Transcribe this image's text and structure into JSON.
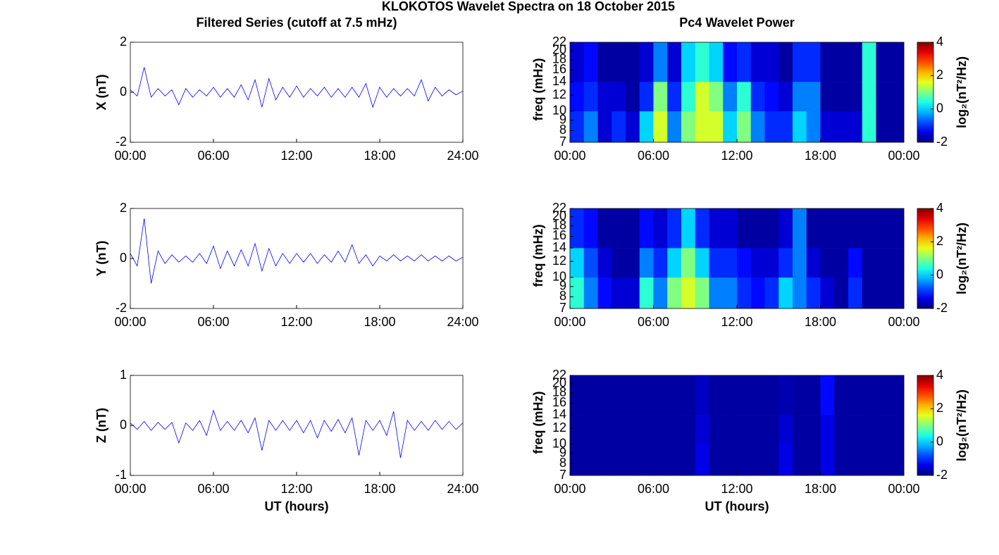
{
  "figure_title": "KLOKOTOS Wavelet Spectra on 18 October 2015",
  "chart_data": [
    {
      "type": "line",
      "title": "Filtered Series (cutoff at 7.5 mHz)",
      "ylabel": "X (nT)",
      "color": "#0000ff",
      "x": [
        0,
        0.5,
        1,
        1.5,
        2,
        2.5,
        3,
        3.5,
        4,
        4.5,
        5,
        5.5,
        6,
        6.5,
        7,
        7.5,
        8,
        8.5,
        9,
        9.5,
        10,
        10.5,
        11,
        11.5,
        12,
        12.5,
        13,
        13.5,
        14,
        14.5,
        15,
        15.5,
        16,
        16.5,
        17,
        17.5,
        18,
        18.5,
        19,
        19.5,
        20,
        20.5,
        21,
        21.5,
        22,
        22.5,
        23,
        23.5,
        24
      ],
      "values": [
        0.1,
        -0.15,
        1.0,
        -0.2,
        0.15,
        -0.15,
        0.1,
        -0.5,
        0.15,
        -0.2,
        0.1,
        -0.15,
        0.2,
        -0.2,
        0.15,
        -0.2,
        0.3,
        -0.3,
        0.5,
        -0.6,
        0.55,
        -0.3,
        0.2,
        -0.2,
        0.25,
        -0.2,
        0.15,
        -0.15,
        0.2,
        -0.2,
        0.15,
        -0.2,
        0.2,
        -0.2,
        0.35,
        -0.6,
        0.2,
        -0.2,
        0.15,
        -0.15,
        0.15,
        -0.15,
        0.5,
        -0.35,
        0.2,
        -0.15,
        0.1,
        -0.1,
        0.05
      ],
      "xlim": [
        0,
        24
      ],
      "xticks": [
        {
          "value": 0,
          "label": "00:00"
        },
        {
          "value": 6,
          "label": "06:00"
        },
        {
          "value": 12,
          "label": "12:00"
        },
        {
          "value": 18,
          "label": "18:00"
        },
        {
          "value": 24,
          "label": "24:00"
        }
      ],
      "ylim": [
        -2,
        2
      ],
      "yticks": [
        -2,
        0,
        2
      ]
    },
    {
      "type": "line",
      "ylabel": "Y (nT)",
      "color": "#0000ff",
      "x": [
        0,
        0.5,
        1,
        1.5,
        2,
        2.5,
        3,
        3.5,
        4,
        4.5,
        5,
        5.5,
        6,
        6.5,
        7,
        7.5,
        8,
        8.5,
        9,
        9.5,
        10,
        10.5,
        11,
        11.5,
        12,
        12.5,
        13,
        13.5,
        14,
        14.5,
        15,
        15.5,
        16,
        16.5,
        17,
        17.5,
        18,
        18.5,
        19,
        19.5,
        20,
        20.5,
        21,
        21.5,
        22,
        22.5,
        23,
        23.5,
        24
      ],
      "values": [
        0.2,
        -0.3,
        1.6,
        -1.0,
        0.3,
        -0.2,
        0.15,
        -0.15,
        0.1,
        -0.15,
        0.2,
        -0.2,
        0.5,
        -0.4,
        0.3,
        -0.3,
        0.35,
        -0.3,
        0.6,
        -0.5,
        0.4,
        -0.3,
        0.2,
        -0.2,
        0.2,
        -0.15,
        0.2,
        -0.2,
        0.15,
        -0.15,
        0.3,
        -0.15,
        0.55,
        -0.2,
        0.15,
        -0.3,
        0.1,
        -0.1,
        0.15,
        -0.1,
        0.1,
        -0.1,
        0.15,
        -0.1,
        0.1,
        -0.1,
        0.1,
        -0.1,
        0.05
      ],
      "xlim": [
        0,
        24
      ],
      "xticks": [
        {
          "value": 0,
          "label": "00:00"
        },
        {
          "value": 6,
          "label": "06:00"
        },
        {
          "value": 12,
          "label": "12:00"
        },
        {
          "value": 18,
          "label": "18:00"
        },
        {
          "value": 24,
          "label": "24:00"
        }
      ],
      "ylim": [
        -2,
        2
      ],
      "yticks": [
        -2,
        0,
        2
      ]
    },
    {
      "type": "line",
      "ylabel": "Z (nT)",
      "xlabel": "UT (hours)",
      "color": "#0000ff",
      "x": [
        0,
        0.5,
        1,
        1.5,
        2,
        2.5,
        3,
        3.5,
        4,
        4.5,
        5,
        5.5,
        6,
        6.5,
        7,
        7.5,
        8,
        8.5,
        9,
        9.5,
        10,
        10.5,
        11,
        11.5,
        12,
        12.5,
        13,
        13.5,
        14,
        14.5,
        15,
        15.5,
        16,
        16.5,
        17,
        17.5,
        18,
        18.5,
        19,
        19.5,
        20,
        20.5,
        21,
        21.5,
        22,
        22.5,
        23,
        23.5,
        24
      ],
      "values": [
        0.05,
        -0.08,
        0.08,
        -0.1,
        0.06,
        -0.08,
        0.06,
        -0.35,
        0.05,
        -0.1,
        0.1,
        -0.2,
        0.3,
        -0.1,
        0.08,
        -0.1,
        0.1,
        -0.15,
        0.15,
        -0.5,
        0.1,
        -0.1,
        0.1,
        -0.1,
        0.1,
        -0.15,
        0.1,
        -0.25,
        0.1,
        -0.12,
        0.12,
        -0.15,
        0.15,
        -0.6,
        0.1,
        -0.1,
        0.1,
        -0.2,
        0.28,
        -0.65,
        0.1,
        -0.1,
        0.08,
        -0.1,
        0.1,
        -0.08,
        0.08,
        -0.08,
        0.05
      ],
      "xlim": [
        0,
        24
      ],
      "xticks": [
        {
          "value": 0,
          "label": "00:00"
        },
        {
          "value": 6,
          "label": "06:00"
        },
        {
          "value": 12,
          "label": "12:00"
        },
        {
          "value": 18,
          "label": "18:00"
        },
        {
          "value": 24,
          "label": "24:00"
        }
      ],
      "ylim": [
        -1,
        1
      ],
      "yticks": [
        -1,
        0,
        1
      ]
    },
    {
      "type": "heatmap",
      "title": "Pc4 Wavelet Power",
      "ylabel": "freq (mHz)",
      "colormap": "jet",
      "colorbar_label": "log₂(nT²/Hz)",
      "x_edges": [
        0,
        1,
        2,
        3,
        4,
        5,
        6,
        7,
        8,
        9,
        10,
        11,
        12,
        13,
        14,
        15,
        16,
        17,
        18,
        19,
        20,
        21,
        22,
        23,
        24
      ],
      "y_edges": [
        7,
        10,
        14,
        22
      ],
      "z": [
        [
          -1,
          -0.5,
          -1.5,
          -1,
          -1.5,
          0,
          1.5,
          -0.5,
          1,
          1.5,
          1.5,
          0,
          1,
          -0.5,
          -1,
          -1,
          0,
          -0.5,
          -1.5,
          -1.5,
          -1.5,
          0.5,
          -1.8,
          -1.8
        ],
        [
          -1.2,
          -1,
          -1.5,
          -1.5,
          -1.8,
          -1,
          1,
          -1,
          0.5,
          1.5,
          1,
          -0.5,
          0.5,
          -1,
          -1.2,
          -1.5,
          -0.5,
          -0.5,
          -1.8,
          -1.8,
          -1.8,
          0.5,
          -1.8,
          -1.8
        ],
        [
          -1.5,
          -1.2,
          -1.8,
          -1.8,
          -1.8,
          -1.5,
          -0.5,
          -1.5,
          0,
          0.5,
          0,
          -1.2,
          -1,
          -1.5,
          -1.5,
          -1.8,
          -1,
          -1,
          -1.8,
          -1.8,
          -1.8,
          0.5,
          -1.8,
          -1.8
        ]
      ],
      "clim": [
        -2,
        4
      ],
      "colorbar_ticks": [
        -2,
        0,
        2,
        4
      ],
      "xlim": [
        0,
        24
      ],
      "xticks": [
        {
          "value": 0,
          "label": "00:00"
        },
        {
          "value": 6,
          "label": "06:00"
        },
        {
          "value": 12,
          "label": "12:00"
        },
        {
          "value": 18,
          "label": "18:00"
        },
        {
          "value": 24,
          "label": "00:00"
        }
      ],
      "ylim": [
        7,
        22
      ],
      "ylog": true,
      "yticks": [
        7,
        8,
        9,
        10,
        12,
        14,
        16,
        18,
        20,
        22
      ]
    },
    {
      "type": "heatmap",
      "ylabel": "freq (mHz)",
      "colormap": "jet",
      "colorbar_label": "log₂(nT²/Hz)",
      "x_edges": [
        0,
        1,
        2,
        3,
        4,
        5,
        6,
        7,
        8,
        9,
        10,
        11,
        12,
        13,
        14,
        15,
        16,
        17,
        18,
        19,
        20,
        21,
        22,
        23,
        24
      ],
      "y_edges": [
        7,
        10,
        14,
        22
      ],
      "z": [
        [
          0.5,
          -0.5,
          -1.2,
          -1.5,
          -1.5,
          0.5,
          -0.5,
          1,
          1.5,
          1,
          -0.5,
          -0.5,
          -1,
          -1.2,
          -1,
          0,
          -0.5,
          -1,
          -1.5,
          -1.8,
          -1,
          -1.8,
          -1.8,
          -1.8
        ],
        [
          0,
          -0.8,
          -1.5,
          -1.8,
          -1.8,
          -0.5,
          -1,
          0,
          1,
          0,
          -1,
          -1,
          -1.2,
          -1.5,
          -1.5,
          -1,
          -0.5,
          -1.5,
          -1.8,
          -1.8,
          -1.2,
          -1.8,
          -1.8,
          -1.8
        ],
        [
          -1,
          -1.2,
          -1.8,
          -1.8,
          -1.8,
          -1.2,
          -1.5,
          -1,
          0,
          -1,
          -1.5,
          -1.5,
          -1.8,
          -1.8,
          -1.8,
          -1.5,
          -0.5,
          -1.8,
          -1.8,
          -1.8,
          -1.8,
          -1.8,
          -1.8,
          -1.8
        ]
      ],
      "clim": [
        -2,
        4
      ],
      "colorbar_ticks": [
        -2,
        0,
        2,
        4
      ],
      "xlim": [
        0,
        24
      ],
      "xticks": [
        {
          "value": 0,
          "label": "00:00"
        },
        {
          "value": 6,
          "label": "06:00"
        },
        {
          "value": 12,
          "label": "12:00"
        },
        {
          "value": 18,
          "label": "18:00"
        },
        {
          "value": 24,
          "label": "00:00"
        }
      ],
      "ylim": [
        7,
        22
      ],
      "ylog": true,
      "yticks": [
        7,
        8,
        9,
        10,
        12,
        14,
        16,
        18,
        20,
        22
      ]
    },
    {
      "type": "heatmap",
      "ylabel": "freq (mHz)",
      "xlabel": "UT (hours)",
      "colormap": "jet",
      "colorbar_label": "log₂(nT²/Hz)",
      "x_edges": [
        0,
        1,
        2,
        3,
        4,
        5,
        6,
        7,
        8,
        9,
        10,
        11,
        12,
        13,
        14,
        15,
        16,
        17,
        18,
        19,
        20,
        21,
        22,
        23,
        24
      ],
      "y_edges": [
        7,
        10,
        14,
        22
      ],
      "z": [
        [
          -1.8,
          -1.8,
          -1.8,
          -1.8,
          -1.8,
          -1.8,
          -1.8,
          -1.8,
          -1.8,
          -1.4,
          -1.8,
          -1.8,
          -1.8,
          -1.8,
          -1.8,
          -1.4,
          -1.8,
          -1.8,
          -1.4,
          -1.8,
          -1.8,
          -1.8,
          -1.8,
          -1.8
        ],
        [
          -1.8,
          -1.8,
          -1.8,
          -1.8,
          -1.8,
          -1.8,
          -1.8,
          -1.8,
          -1.8,
          -1.5,
          -1.8,
          -1.8,
          -1.8,
          -1.8,
          -1.8,
          -1.5,
          -1.8,
          -1.8,
          -1.4,
          -1.8,
          -1.8,
          -1.8,
          -1.8,
          -1.8
        ],
        [
          -1.8,
          -1.8,
          -1.8,
          -1.8,
          -1.8,
          -1.8,
          -1.8,
          -1.8,
          -1.8,
          -1.6,
          -1.8,
          -1.8,
          -1.8,
          -1.8,
          -1.8,
          -1.7,
          -1.8,
          -1.8,
          -1.2,
          -1.8,
          -1.8,
          -1.8,
          -1.8,
          -1.8
        ]
      ],
      "clim": [
        -2,
        4
      ],
      "colorbar_ticks": [
        -2,
        0,
        2,
        4
      ],
      "xlim": [
        0,
        24
      ],
      "xticks": [
        {
          "value": 0,
          "label": "00:00"
        },
        {
          "value": 6,
          "label": "06:00"
        },
        {
          "value": 12,
          "label": "12:00"
        },
        {
          "value": 18,
          "label": "18:00"
        },
        {
          "value": 24,
          "label": "00:00"
        }
      ],
      "ylim": [
        7,
        22
      ],
      "ylog": true,
      "yticks": [
        7,
        8,
        9,
        10,
        12,
        14,
        16,
        18,
        20,
        22
      ]
    }
  ]
}
